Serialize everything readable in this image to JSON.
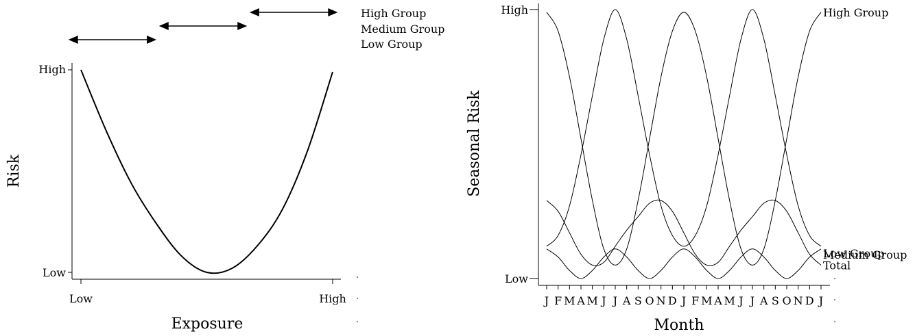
{
  "chart_data": [
    {
      "type": "line",
      "title": "",
      "xlabel": "Exposure",
      "ylabel": "Risk",
      "x_tick_labels": [
        "Low",
        "High"
      ],
      "y_tick_labels": [
        "Low",
        "High"
      ],
      "xlim": [
        0,
        1
      ],
      "ylim": [
        0,
        1
      ],
      "grid": false,
      "series": [
        {
          "x": [
            0,
            0.1,
            0.2,
            0.3,
            0.4,
            0.5,
            0.6,
            0.7,
            0.8,
            0.9,
            1.0
          ],
          "y": [
            1.0,
            0.7,
            0.44,
            0.24,
            0.08,
            0.0,
            0.02,
            0.13,
            0.31,
            0.6,
            0.99
          ]
        }
      ],
      "group_ranges": [
        {
          "label": "High Group",
          "from": 0.67,
          "to": 1.02
        },
        {
          "label": "Medium Group",
          "from": 0.31,
          "to": 0.66
        },
        {
          "label": "Low Group",
          "from": -0.05,
          "to": 0.3
        }
      ]
    },
    {
      "type": "line",
      "title": "",
      "xlabel": "Month",
      "ylabel": "Seasonal Risk",
      "categories": [
        "J",
        "F",
        "M",
        "A",
        "M",
        "J",
        "J",
        "A",
        "S",
        "O",
        "N",
        "D",
        "J",
        "F",
        "M",
        "A",
        "M",
        "J",
        "J",
        "A",
        "S",
        "O",
        "N",
        "D",
        "J"
      ],
      "y_tick_labels": [
        "Low",
        "High"
      ],
      "ylim": [
        0,
        1
      ],
      "grid": false,
      "series": [
        {
          "name": "High Group",
          "values": [
            0.99,
            0.92,
            0.75,
            0.52,
            0.29,
            0.11,
            0.05,
            0.11,
            0.29,
            0.52,
            0.75,
            0.92,
            0.99,
            0.92,
            0.75,
            0.52,
            0.29,
            0.11,
            0.05,
            0.11,
            0.29,
            0.52,
            0.75,
            0.92,
            0.99
          ]
        },
        {
          "name": "Total",
          "values": [
            0.29,
            0.25,
            0.17,
            0.09,
            0.05,
            0.06,
            0.12,
            0.18,
            0.23,
            0.28,
            0.29,
            0.25,
            0.17,
            0.09,
            0.05,
            0.06,
            0.12,
            0.18,
            0.23,
            0.28,
            0.29,
            0.25,
            0.17,
            0.09,
            0.05
          ]
        },
        {
          "name": "Low Group",
          "values": [
            0.12,
            0.16,
            0.27,
            0.46,
            0.68,
            0.89,
            1.0,
            0.89,
            0.68,
            0.46,
            0.27,
            0.16,
            0.12,
            0.16,
            0.27,
            0.46,
            0.68,
            0.89,
            1.0,
            0.89,
            0.68,
            0.46,
            0.27,
            0.16,
            0.12
          ]
        },
        {
          "name": "Medium Group",
          "values": [
            0.11,
            0.08,
            0.03,
            0.0,
            0.03,
            0.08,
            0.11,
            0.08,
            0.03,
            0.0,
            0.03,
            0.08,
            0.11,
            0.08,
            0.03,
            0.0,
            0.03,
            0.08,
            0.11,
            0.08,
            0.03,
            0.0,
            0.03,
            0.08,
            0.11
          ]
        }
      ]
    }
  ]
}
